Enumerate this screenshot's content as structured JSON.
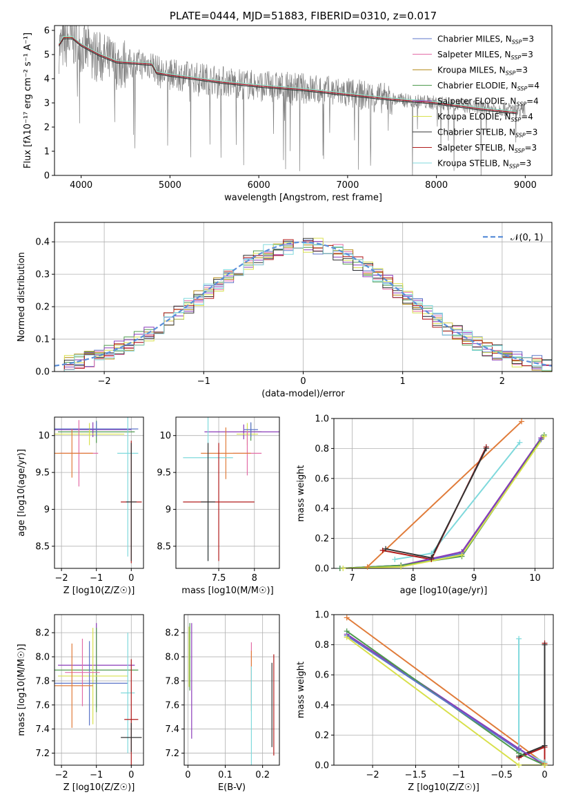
{
  "chart_data": [
    {
      "type": "line",
      "panel": "spectrum",
      "title": "PLATE=0444, MJD=51883, FIBERID=0310, z=0.017",
      "xlabel": "wavelength [Angstrom, rest frame]",
      "ylabel": "Flux [fλ10⁻¹⁷ erg cm⁻² s⁻¹ A⁻¹]",
      "xlim": [
        3700,
        9300
      ],
      "ylim": [
        0,
        6.2
      ],
      "xticks": [
        4000,
        5000,
        6000,
        7000,
        8000,
        9000
      ],
      "yticks": [
        0,
        1,
        2,
        3,
        4,
        5,
        6
      ],
      "grid": false,
      "legend_position": "top-right",
      "observed_continuum": {
        "x": [
          3750,
          3900,
          4000,
          4200,
          4400,
          4800,
          4900,
          5200,
          5600,
          6000,
          6500,
          7000,
          7500,
          8000,
          8500,
          9000
        ],
        "y": [
          5.3,
          5.6,
          5.3,
          4.9,
          4.6,
          4.6,
          4.2,
          4.1,
          3.9,
          3.7,
          3.6,
          3.4,
          3.15,
          3.0,
          2.8,
          2.7
        ]
      },
      "series": [
        {
          "name": "Chabrier MILES, N_SSP=3",
          "color": "#5b74c8"
        },
        {
          "name": "Salpeter MILES, N_SSP=3",
          "color": "#e36ba6"
        },
        {
          "name": "Kroupa MILES, N_SSP=3",
          "color": "#b0850c"
        },
        {
          "name": "Chabrier ELODIE, N_SSP=4",
          "color": "#4e9a4e"
        },
        {
          "name": "Salpeter ELODIE, N_SSP=4",
          "color": "#8a3ab9"
        },
        {
          "name": "Kroupa ELODIE, N_SSP=4",
          "color": "#d8e04c"
        },
        {
          "name": "Chabrier STELIB, N_SSP=3",
          "color": "#333333"
        },
        {
          "name": "Salpeter STELIB, N_SSP=3",
          "color": "#b01a1a"
        },
        {
          "name": "Kroupa STELIB, N_SSP=3",
          "color": "#7fd9dc"
        }
      ],
      "model_curve": {
        "x": [
          3750,
          3800,
          3900,
          4000,
          4200,
          4400,
          4800,
          4850,
          5000,
          5300,
          5600,
          6000,
          6500,
          7000,
          7500,
          8000,
          8500,
          8900
        ],
        "y": [
          5.4,
          5.7,
          5.7,
          5.4,
          5.0,
          4.7,
          4.6,
          4.25,
          4.15,
          4.0,
          3.85,
          3.7,
          3.55,
          3.35,
          3.15,
          3.0,
          2.75,
          2.6
        ]
      }
    },
    {
      "type": "line",
      "panel": "residuals",
      "xlabel": "(data-model)/error",
      "ylabel": "Normed distribution",
      "xlim": [
        -2.5,
        2.5
      ],
      "ylim": [
        0,
        0.46
      ],
      "xticks": [
        -2,
        -1,
        0,
        1,
        2
      ],
      "yticks": [
        0.0,
        0.1,
        0.2,
        0.3,
        0.4
      ],
      "grid": true,
      "legend_position": "top-right",
      "reference": {
        "name": "𝒩(0, 1)",
        "color": "#5b8fd9"
      }
    },
    {
      "type": "scatter",
      "panel": "age-vs-Z",
      "xlabel": "Z [log10(Z/Z☉)]",
      "ylabel": "age [log10(age/yr)]",
      "xlim": [
        -2.2,
        0.35
      ],
      "ylim": [
        8.2,
        10.25
      ],
      "xticks": [
        -2,
        -1,
        0
      ],
      "yticks": [
        8.5,
        9.0,
        9.5,
        10.0
      ],
      "grid": true,
      "points": [
        {
          "x": -1.0,
          "y": 10.05,
          "xerr": 1.1,
          "yerr": 0.15,
          "color": "#4e9a4e"
        },
        {
          "x": -1.1,
          "y": 10.08,
          "xerr": 1.1,
          "yerr": 0.1,
          "color": "#8a3ab9"
        },
        {
          "x": -1.2,
          "y": 10.02,
          "xerr": 1.0,
          "yerr": 0.15,
          "color": "#d8e04c"
        },
        {
          "x": -1.0,
          "y": 10.09,
          "xerr": 1.2,
          "yerr": 0.1,
          "color": "#5b74c8"
        },
        {
          "x": -1.5,
          "y": 9.76,
          "xerr": 0.55,
          "yerr": 0.45,
          "color": "#e36ba6"
        },
        {
          "x": -1.7,
          "y": 9.76,
          "xerr": 0.6,
          "yerr": 0.33,
          "color": "#e07b39"
        },
        {
          "x": -0.1,
          "y": 9.76,
          "xerr": 0.3,
          "yerr": 1.4,
          "color": "#7fd9dc"
        },
        {
          "x": 0.0,
          "y": 9.1,
          "xerr": 0.3,
          "yerr": 0.83,
          "color": "#b01a1a"
        },
        {
          "x": 0.0,
          "y": 9.1,
          "xerr": 0.15,
          "yerr": 0.8,
          "color": "#333333"
        }
      ]
    },
    {
      "type": "scatter",
      "panel": "age-vs-mass",
      "xlabel": "mass [log10(M/M☉)]",
      "ylabel": "",
      "xlim": [
        6.9,
        8.35
      ],
      "ylim": [
        8.2,
        10.25
      ],
      "xticks": [
        7.5,
        8.0
      ],
      "yticks": [
        8.5,
        9.0,
        9.5,
        10.0
      ],
      "grid": true,
      "points": [
        {
          "x": 7.95,
          "y": 10.05,
          "xerr": 0.15,
          "yerr": 0.12,
          "color": "#4e9a4e"
        },
        {
          "x": 7.85,
          "y": 10.05,
          "xerr": 0.55,
          "yerr": 0.1,
          "color": "#8a3ab9"
        },
        {
          "x": 7.9,
          "y": 10.02,
          "xerr": 0.15,
          "yerr": 0.15,
          "color": "#d8e04c"
        },
        {
          "x": 7.95,
          "y": 10.08,
          "xerr": 0.1,
          "yerr": 0.1,
          "color": "#5b74c8"
        },
        {
          "x": 7.9,
          "y": 9.76,
          "xerr": 0.2,
          "yerr": 0.3,
          "color": "#e36ba6"
        },
        {
          "x": 7.6,
          "y": 9.76,
          "xerr": 0.35,
          "yerr": 0.35,
          "color": "#e07b39"
        },
        {
          "x": 7.35,
          "y": 9.7,
          "xerr": 0.35,
          "yerr": 1.4,
          "color": "#7fd9dc"
        },
        {
          "x": 7.5,
          "y": 9.1,
          "xerr": 0.5,
          "yerr": 0.8,
          "color": "#b01a1a"
        },
        {
          "x": 7.35,
          "y": 9.1,
          "xerr": 0.1,
          "yerr": 0.8,
          "color": "#333333"
        }
      ]
    },
    {
      "type": "line",
      "panel": "weight-vs-age",
      "xlabel": "age [log10(age/yr)]",
      "ylabel": "mass weight",
      "xlim": [
        6.7,
        10.3
      ],
      "ylim": [
        0,
        1.0
      ],
      "xticks": [
        7,
        8,
        9,
        10
      ],
      "yticks": [
        0.0,
        0.2,
        0.4,
        0.6,
        0.8,
        1.0
      ],
      "grid": true,
      "series": [
        {
          "color": "#e07b39",
          "x": [
            7.25,
            9.78
          ],
          "y": [
            0.01,
            0.98
          ]
        },
        {
          "color": "#7fd9dc",
          "x": [
            7.7,
            8.3,
            9.75
          ],
          "y": [
            0.06,
            0.1,
            0.84
          ]
        },
        {
          "color": "#b01a1a",
          "x": [
            7.5,
            8.3,
            9.2
          ],
          "y": [
            0.12,
            0.06,
            0.81
          ]
        },
        {
          "color": "#333333",
          "x": [
            7.55,
            8.3,
            9.2
          ],
          "y": [
            0.13,
            0.07,
            0.8
          ]
        },
        {
          "color": "#5b74c8",
          "x": [
            6.8,
            7.8,
            8.8,
            10.1
          ],
          "y": [
            0.0,
            0.02,
            0.1,
            0.86
          ]
        },
        {
          "color": "#8a3ab9",
          "x": [
            6.8,
            7.8,
            8.8,
            10.1
          ],
          "y": [
            0.0,
            0.02,
            0.11,
            0.87
          ]
        },
        {
          "color": "#4e9a4e",
          "x": [
            6.8,
            7.8,
            8.8,
            10.15
          ],
          "y": [
            0.0,
            0.02,
            0.08,
            0.89
          ]
        },
        {
          "color": "#d8e04c",
          "x": [
            6.85,
            7.8,
            8.8,
            10.15
          ],
          "y": [
            0.0,
            0.01,
            0.09,
            0.88
          ]
        }
      ]
    },
    {
      "type": "scatter",
      "panel": "mass-vs-Z",
      "xlabel": "Z [log10(Z/Z☉)]",
      "ylabel": "mass [log10(M/M☉)]",
      "xlim": [
        -2.2,
        0.35
      ],
      "ylim": [
        7.1,
        8.35
      ],
      "xticks": [
        -2,
        -1,
        0
      ],
      "yticks": [
        7.2,
        7.4,
        7.6,
        7.8,
        8.0,
        8.2
      ],
      "grid": true,
      "points": [
        {
          "x": -1.0,
          "y": 7.93,
          "xerr": 1.1,
          "yerr": 0.35,
          "color": "#8a3ab9"
        },
        {
          "x": -1.0,
          "y": 7.89,
          "xerr": 1.2,
          "yerr": 0.35,
          "color": "#4e9a4e"
        },
        {
          "x": -1.1,
          "y": 7.84,
          "xerr": 1.0,
          "yerr": 0.4,
          "color": "#d8e04c"
        },
        {
          "x": -1.2,
          "y": 7.78,
          "xerr": 1.1,
          "yerr": 0.35,
          "color": "#5b74c8"
        },
        {
          "x": -1.4,
          "y": 7.87,
          "xerr": 0.5,
          "yerr": 0.28,
          "color": "#e36ba6"
        },
        {
          "x": -1.7,
          "y": 7.76,
          "xerr": 0.6,
          "yerr": 0.35,
          "color": "#e07b39"
        },
        {
          "x": -0.1,
          "y": 7.7,
          "xerr": 0.2,
          "yerr": 0.5,
          "color": "#7fd9dc"
        },
        {
          "x": 0.0,
          "y": 7.48,
          "xerr": 0.2,
          "yerr": 0.5,
          "color": "#b01a1a"
        },
        {
          "x": 0.0,
          "y": 7.33,
          "xerr": 0.3,
          "yerr": 0.12,
          "color": "#333333"
        }
      ]
    },
    {
      "type": "scatter",
      "panel": "mass-vs-EBV",
      "xlabel": "E(B-V)",
      "ylabel": "",
      "xlim": [
        -0.01,
        0.245
      ],
      "ylim": [
        7.1,
        8.35
      ],
      "xticks": [
        0.0,
        0.1,
        0.2
      ],
      "yticks": [
        7.2,
        7.4,
        7.6,
        7.8,
        8.0,
        8.2
      ],
      "grid": true,
      "points": [
        {
          "x": 0.01,
          "y": 7.8,
          "yerr": 0.48,
          "color": "#8a3ab9"
        },
        {
          "x": 0.005,
          "y": 8.0,
          "yerr": 0.28,
          "color": "#4e9a4e"
        },
        {
          "x": 0.003,
          "y": 8.0,
          "yerr": 0.25,
          "color": "#d8e04c"
        },
        {
          "x": 0.17,
          "y": 7.87,
          "yerr": 0.25,
          "color": "#e36ba6"
        },
        {
          "x": 0.17,
          "y": 7.8,
          "yerr": 0.25,
          "color": "#e07b39"
        },
        {
          "x": 0.17,
          "y": 7.5,
          "yerr": 0.42,
          "color": "#7fd9dc"
        },
        {
          "x": 0.23,
          "y": 7.6,
          "yerr": 0.42,
          "color": "#b01a1a"
        },
        {
          "x": 0.225,
          "y": 7.6,
          "yerr": 0.35,
          "color": "#333333"
        }
      ]
    },
    {
      "type": "line",
      "panel": "weight-vs-Z",
      "xlabel": "Z [log10(Z/Z☉)]",
      "ylabel": "mass weight",
      "xlim": [
        -2.45,
        0.1
      ],
      "ylim": [
        0,
        1.0
      ],
      "xticks": [
        -2.0,
        -1.5,
        -1.0,
        -0.5,
        0.0
      ],
      "yticks": [
        0.0,
        0.2,
        0.4,
        0.6,
        0.8,
        1.0
      ],
      "grid": true,
      "series": [
        {
          "color": "#e07b39",
          "x": [
            -2.3,
            0.0
          ],
          "y": [
            0.98,
            0.01
          ]
        },
        {
          "color": "#7fd9dc",
          "x": [
            -0.3,
            -0.3,
            0.0
          ],
          "y": [
            0.84,
            0.1,
            0.02
          ]
        },
        {
          "color": "#b01a1a",
          "x": [
            -0.3,
            0.0,
            0.0,
            0.0
          ],
          "y": [
            0.05,
            0.12,
            0.81,
            0.0
          ]
        },
        {
          "color": "#333333",
          "x": [
            -0.3,
            0.0,
            0.0
          ],
          "y": [
            0.06,
            0.13,
            0.8
          ]
        },
        {
          "color": "#8a3ab9",
          "x": [
            -2.3,
            -0.3,
            0.0
          ],
          "y": [
            0.87,
            0.11,
            0.0
          ]
        },
        {
          "color": "#4e9a4e",
          "x": [
            -2.3,
            -0.3,
            0.0
          ],
          "y": [
            0.89,
            0.08,
            0.0
          ]
        },
        {
          "color": "#5b74c8",
          "x": [
            -2.3,
            -0.3
          ],
          "y": [
            0.86,
            0.1
          ]
        },
        {
          "color": "#d8e04c",
          "x": [
            -2.3,
            -0.3,
            0.0
          ],
          "y": [
            0.85,
            0.0,
            0.0
          ]
        }
      ]
    }
  ]
}
